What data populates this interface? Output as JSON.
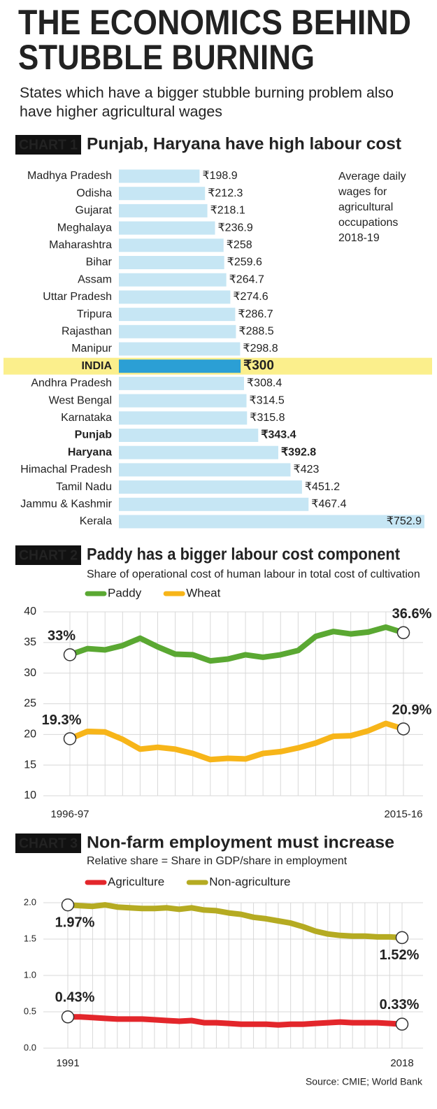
{
  "header": {
    "title_lines": [
      "THE ECONOMICS BEHIND",
      "STUBBLE BURNING"
    ],
    "subtitle_lines": [
      "States which have a bigger stubble burning problem also",
      "have higher agricultural wages"
    ]
  },
  "chart_data": [
    {
      "type": "bar",
      "label": "CHART 1",
      "title": "Punjab, Haryana have high labour cost",
      "note_lines": [
        "Average daily",
        "wages for",
        "agricultural",
        "occupations",
        "2018-19"
      ],
      "categories": [
        "Madhya Pradesh",
        "Odisha",
        "Gujarat",
        "Meghalaya",
        "Maharashtra",
        "Bihar",
        "Assam",
        "Uttar Pradesh",
        "Tripura",
        "Rajasthan",
        "Manipur",
        "INDIA",
        "Andhra Pradesh",
        "West Bengal",
        "Karnataka",
        "Punjab",
        "Haryana",
        "Himachal Pradesh",
        "Tamil Nadu",
        "Jammu & Kashmir",
        "Kerala"
      ],
      "values": [
        198.9,
        212.3,
        218.1,
        236.9,
        258,
        259.6,
        264.7,
        274.6,
        286.7,
        288.5,
        298.8,
        300,
        308.4,
        314.5,
        315.8,
        343.4,
        392.8,
        423,
        451.2,
        467.4,
        752.9
      ],
      "value_labels": [
        "₹198.9",
        "₹212.3",
        "₹218.1",
        "₹236.9",
        "₹258",
        "₹259.6",
        "₹264.7",
        "₹274.6",
        "₹286.7",
        "₹288.5",
        "₹298.8",
        "₹300",
        "₹308.4",
        "₹314.5",
        "₹315.8",
        "₹343.4",
        "₹392.8",
        "₹423",
        "₹451.2",
        "₹467.4",
        "₹752.9"
      ],
      "color": "#c6e6f4",
      "highlight": "INDIA",
      "highlight_color": "#2b9fd5",
      "highlight_band_color": "#fbef8c",
      "bold_categories": [
        "INDIA",
        "Punjab",
        "Haryana"
      ]
    },
    {
      "type": "line",
      "label": "CHART 2",
      "title": "Paddy has a bigger labour cost component",
      "subtitle": "Share of operational cost of human labour in total cost of cultivation",
      "categories": [
        "1996-97",
        null,
        null,
        null,
        null,
        null,
        null,
        null,
        null,
        null,
        null,
        null,
        null,
        null,
        null,
        null,
        null,
        null,
        null,
        "2015-16"
      ],
      "series": [
        {
          "name": "Paddy",
          "color": "#5aa832",
          "values": [
            33,
            34,
            33.8,
            34.5,
            35.7,
            34.3,
            33.1,
            33,
            32,
            32.3,
            33,
            32.6,
            33,
            33.7,
            36,
            36.8,
            36.4,
            36.7,
            37.5,
            36.6
          ],
          "value_labels": [
            "33%",
            null,
            null,
            null,
            null,
            null,
            null,
            null,
            null,
            null,
            null,
            null,
            null,
            null,
            null,
            null,
            null,
            null,
            null,
            "36.6%"
          ]
        },
        {
          "name": "Wheat",
          "color": "#f7b519",
          "values": [
            19.3,
            20.5,
            20.4,
            19.2,
            17.6,
            17.9,
            17.6,
            16.9,
            15.9,
            16.1,
            16,
            16.9,
            17.2,
            17.8,
            18.6,
            19.7,
            19.8,
            20.6,
            21.8,
            20.9
          ],
          "value_labels": [
            "19.3%",
            null,
            null,
            null,
            null,
            null,
            null,
            null,
            null,
            null,
            null,
            null,
            null,
            null,
            null,
            null,
            null,
            null,
            null,
            "20.9%"
          ]
        }
      ],
      "ylim": [
        10,
        40
      ],
      "yticks": [
        10,
        15,
        20,
        25,
        30,
        35,
        40
      ],
      "grid": true
    },
    {
      "type": "line",
      "label": "CHART 3",
      "title": "Non-farm employment must increase",
      "subtitle": "Relative share = Share in GDP/share in employment",
      "x": [
        1991,
        1992,
        1993,
        1994,
        1995,
        1996,
        1997,
        1998,
        1999,
        2000,
        2001,
        2002,
        2003,
        2004,
        2005,
        2006,
        2007,
        2008,
        2009,
        2010,
        2011,
        2012,
        2013,
        2014,
        2015,
        2016,
        2017,
        2018
      ],
      "xlim": [
        1991,
        2018
      ],
      "xticks": [
        1991,
        2018
      ],
      "series": [
        {
          "name": "Agriculture",
          "color": "#e3262b",
          "values": [
            0.43,
            0.43,
            0.42,
            0.41,
            0.4,
            0.4,
            0.4,
            0.39,
            0.38,
            0.37,
            0.38,
            0.35,
            0.35,
            0.34,
            0.33,
            0.33,
            0.33,
            0.32,
            0.33,
            0.33,
            0.34,
            0.35,
            0.36,
            0.35,
            0.35,
            0.35,
            0.34,
            0.33
          ],
          "value_labels": [
            "0.43%",
            null,
            null,
            null,
            null,
            null,
            null,
            null,
            null,
            null,
            null,
            null,
            null,
            null,
            null,
            null,
            null,
            null,
            null,
            null,
            null,
            null,
            null,
            null,
            null,
            null,
            null,
            "0.33%"
          ]
        },
        {
          "name": "Non-agriculture",
          "color": "#b5ab22",
          "values": [
            1.97,
            1.96,
            1.95,
            1.97,
            1.94,
            1.93,
            1.92,
            1.92,
            1.93,
            1.91,
            1.93,
            1.9,
            1.89,
            1.86,
            1.84,
            1.8,
            1.78,
            1.75,
            1.72,
            1.67,
            1.61,
            1.57,
            1.55,
            1.54,
            1.54,
            1.53,
            1.53,
            1.52
          ],
          "value_labels": [
            "1.97%",
            null,
            null,
            null,
            null,
            null,
            null,
            null,
            null,
            null,
            null,
            null,
            null,
            null,
            null,
            null,
            null,
            null,
            null,
            null,
            null,
            null,
            null,
            null,
            null,
            null,
            null,
            "1.52%"
          ]
        }
      ],
      "ylim": [
        0,
        2
      ],
      "yticks": [
        {
          "value": 0,
          "label": "0.0"
        },
        0.5,
        {
          "value": 1,
          "label": "1.0"
        },
        1.5,
        {
          "value": 2,
          "label": "2.0"
        }
      ],
      "grid": true,
      "source": "Source:  CMIE; World Bank"
    }
  ]
}
